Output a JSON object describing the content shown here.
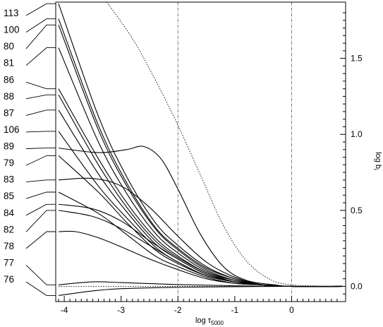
{
  "chart_data": {
    "type": "line",
    "title": "",
    "xlabel": "log τ",
    "xlabel_sub": "5000",
    "ylabel": "log b",
    "ylabel_sub": "i",
    "xlim": [
      -4.15,
      0.95
    ],
    "ylim": [
      -0.1,
      1.87
    ],
    "xticks": [
      -4,
      -3,
      -2,
      -1,
      0
    ],
    "xtick_labels": [
      "-4",
      "-3",
      "-2",
      "-1",
      "0"
    ],
    "yticks": [
      0.0,
      0.5,
      1.0,
      1.5
    ],
    "ytick_labels": [
      "0.0",
      "0.5",
      "1.0",
      "1.5"
    ],
    "vlines": [
      -2,
      0
    ],
    "grid": false,
    "level_labels": [
      "113",
      "100",
      "80",
      "81",
      "86",
      "88",
      "87",
      "106",
      "89",
      "79",
      "83",
      "85",
      "84",
      "82",
      "78",
      "77",
      "76"
    ],
    "series": [
      {
        "values": [
          [
            -4.1,
            1.86
          ],
          [
            -3.4,
            1.12
          ],
          [
            -2.9,
            0.72
          ],
          [
            -2.4,
            0.42
          ],
          [
            -2.0,
            0.27
          ],
          [
            -1.5,
            0.13
          ],
          [
            -1.0,
            0.05
          ],
          [
            -0.5,
            0.01
          ],
          [
            0.0,
            0.0
          ],
          [
            0.9,
            0.0
          ]
        ]
      },
      {
        "values": [
          [
            -4.1,
            1.76
          ],
          [
            -3.4,
            1.06
          ],
          [
            -2.9,
            0.68
          ],
          [
            -2.4,
            0.39
          ],
          [
            -2.0,
            0.25
          ],
          [
            -1.5,
            0.12
          ],
          [
            -1.0,
            0.05
          ],
          [
            -0.5,
            0.01
          ],
          [
            0.0,
            0.0
          ],
          [
            0.9,
            0.0
          ]
        ]
      },
      {
        "values": [
          [
            -4.1,
            1.72
          ],
          [
            -3.4,
            1.03
          ],
          [
            -2.9,
            0.66
          ],
          [
            -2.4,
            0.38
          ],
          [
            -2.0,
            0.24
          ],
          [
            -1.5,
            0.11
          ],
          [
            -1.0,
            0.04
          ],
          [
            -0.5,
            0.01
          ],
          [
            0.0,
            0.0
          ],
          [
            0.9,
            0.0
          ]
        ]
      },
      {
        "values": [
          [
            -4.1,
            1.57
          ],
          [
            -3.4,
            0.95
          ],
          [
            -2.9,
            0.61
          ],
          [
            -2.4,
            0.35
          ],
          [
            -2.0,
            0.22
          ],
          [
            -1.5,
            0.1
          ],
          [
            -1.0,
            0.04
          ],
          [
            -0.5,
            0.01
          ],
          [
            0.0,
            0.0
          ],
          [
            0.9,
            0.0
          ]
        ]
      },
      {
        "values": [
          [
            -4.1,
            1.3
          ],
          [
            -3.4,
            0.84
          ],
          [
            -2.9,
            0.55
          ],
          [
            -2.4,
            0.32
          ],
          [
            -2.0,
            0.2
          ],
          [
            -1.5,
            0.09
          ],
          [
            -1.0,
            0.04
          ],
          [
            -0.5,
            0.01
          ],
          [
            0.0,
            0.0
          ],
          [
            0.9,
            0.0
          ]
        ]
      },
      {
        "values": [
          [
            -4.1,
            1.26
          ],
          [
            -3.4,
            0.8
          ],
          [
            -2.9,
            0.52
          ],
          [
            -2.4,
            0.3
          ],
          [
            -2.0,
            0.19
          ],
          [
            -1.5,
            0.09
          ],
          [
            -1.0,
            0.03
          ],
          [
            -0.5,
            0.01
          ],
          [
            0.0,
            0.0
          ],
          [
            0.9,
            0.0
          ]
        ]
      },
      {
        "values": [
          [
            -4.1,
            1.16
          ],
          [
            -3.4,
            0.74
          ],
          [
            -2.9,
            0.49
          ],
          [
            -2.4,
            0.28
          ],
          [
            -2.0,
            0.18
          ],
          [
            -1.5,
            0.08
          ],
          [
            -1.0,
            0.03
          ],
          [
            -0.5,
            0.01
          ],
          [
            0.0,
            0.0
          ],
          [
            0.9,
            0.0
          ]
        ]
      },
      {
        "values": [
          [
            -4.1,
            1.02
          ],
          [
            -3.4,
            0.66
          ],
          [
            -2.9,
            0.45
          ],
          [
            -2.4,
            0.26
          ],
          [
            -2.0,
            0.16
          ],
          [
            -1.5,
            0.07
          ],
          [
            -1.0,
            0.03
          ],
          [
            -0.5,
            0.01
          ],
          [
            0.0,
            0.0
          ],
          [
            0.9,
            0.0
          ]
        ]
      },
      {
        "values": [
          [
            -4.1,
            0.91
          ],
          [
            -3.4,
            0.88
          ],
          [
            -2.9,
            0.9
          ],
          [
            -2.6,
            0.92
          ],
          [
            -2.3,
            0.84
          ],
          [
            -2.0,
            0.64
          ],
          [
            -1.6,
            0.34
          ],
          [
            -1.2,
            0.13
          ],
          [
            -0.8,
            0.04
          ],
          [
            -0.3,
            0.01
          ],
          [
            0.0,
            0.0
          ],
          [
            0.9,
            0.0
          ]
        ]
      },
      {
        "values": [
          [
            -4.1,
            0.86
          ],
          [
            -3.4,
            0.62
          ],
          [
            -2.9,
            0.42
          ],
          [
            -2.4,
            0.24
          ],
          [
            -2.0,
            0.15
          ],
          [
            -1.5,
            0.07
          ],
          [
            -1.0,
            0.03
          ],
          [
            -0.5,
            0.01
          ],
          [
            0.0,
            0.0
          ],
          [
            0.9,
            0.0
          ]
        ]
      },
      {
        "values": [
          [
            -4.1,
            0.7
          ],
          [
            -3.5,
            0.71
          ],
          [
            -3.0,
            0.66
          ],
          [
            -2.5,
            0.52
          ],
          [
            -2.0,
            0.33
          ],
          [
            -1.5,
            0.16
          ],
          [
            -1.0,
            0.06
          ],
          [
            -0.5,
            0.01
          ],
          [
            0.0,
            0.0
          ],
          [
            0.9,
            0.0
          ]
        ]
      },
      {
        "values": [
          [
            -4.1,
            0.62
          ],
          [
            -3.4,
            0.48
          ],
          [
            -2.9,
            0.34
          ],
          [
            -2.4,
            0.2
          ],
          [
            -2.0,
            0.13
          ],
          [
            -1.5,
            0.06
          ],
          [
            -1.0,
            0.02
          ],
          [
            -0.5,
            0.01
          ],
          [
            0.0,
            0.0
          ],
          [
            0.9,
            0.0
          ]
        ]
      },
      {
        "values": [
          [
            -4.1,
            0.54
          ],
          [
            -3.5,
            0.51
          ],
          [
            -3.0,
            0.43
          ],
          [
            -2.5,
            0.3
          ],
          [
            -2.0,
            0.18
          ],
          [
            -1.5,
            0.08
          ],
          [
            -1.0,
            0.03
          ],
          [
            -0.5,
            0.01
          ],
          [
            0.0,
            0.0
          ],
          [
            0.9,
            0.0
          ]
        ]
      },
      {
        "values": [
          [
            -4.1,
            0.5
          ],
          [
            -3.5,
            0.46
          ],
          [
            -3.0,
            0.38
          ],
          [
            -2.5,
            0.27
          ],
          [
            -2.0,
            0.16
          ],
          [
            -1.5,
            0.07
          ],
          [
            -1.0,
            0.03
          ],
          [
            -0.5,
            0.01
          ],
          [
            0.0,
            0.0
          ],
          [
            0.9,
            0.0
          ]
        ]
      },
      {
        "values": [
          [
            -4.1,
            0.36
          ],
          [
            -3.8,
            0.36
          ],
          [
            -3.4,
            0.32
          ],
          [
            -3.0,
            0.26
          ],
          [
            -2.5,
            0.18
          ],
          [
            -2.0,
            0.11
          ],
          [
            -1.5,
            0.05
          ],
          [
            -1.0,
            0.02
          ],
          [
            -0.5,
            0.01
          ],
          [
            0.0,
            0.0
          ],
          [
            0.9,
            0.0
          ]
        ]
      },
      {
        "values": [
          [
            -4.1,
            0.01
          ],
          [
            -3.5,
            0.03
          ],
          [
            -3.0,
            0.025
          ],
          [
            -2.0,
            0.012
          ],
          [
            -1.0,
            0.004
          ],
          [
            0.0,
            0.0
          ],
          [
            0.9,
            0.0
          ]
        ]
      },
      {
        "values": [
          [
            -4.1,
            -0.06
          ],
          [
            -3.5,
            -0.03
          ],
          [
            -3.0,
            -0.015
          ],
          [
            -2.0,
            -0.006
          ],
          [
            -1.0,
            -0.002
          ],
          [
            0.0,
            0.0
          ],
          [
            0.9,
            0.0
          ]
        ]
      }
    ],
    "dotted_series": [
      {
        "values": [
          [
            -3.25,
            1.87
          ],
          [
            -2.8,
            1.63
          ],
          [
            -2.4,
            1.36
          ],
          [
            -2.0,
            1.06
          ],
          [
            -1.6,
            0.73
          ],
          [
            -1.2,
            0.4
          ],
          [
            -0.8,
            0.17
          ],
          [
            -0.4,
            0.05
          ],
          [
            0.0,
            0.01
          ],
          [
            0.9,
            0.0
          ]
        ]
      },
      {
        "values": [
          [
            -4.1,
            0.0
          ],
          [
            0.9,
            0.0
          ]
        ]
      }
    ]
  }
}
